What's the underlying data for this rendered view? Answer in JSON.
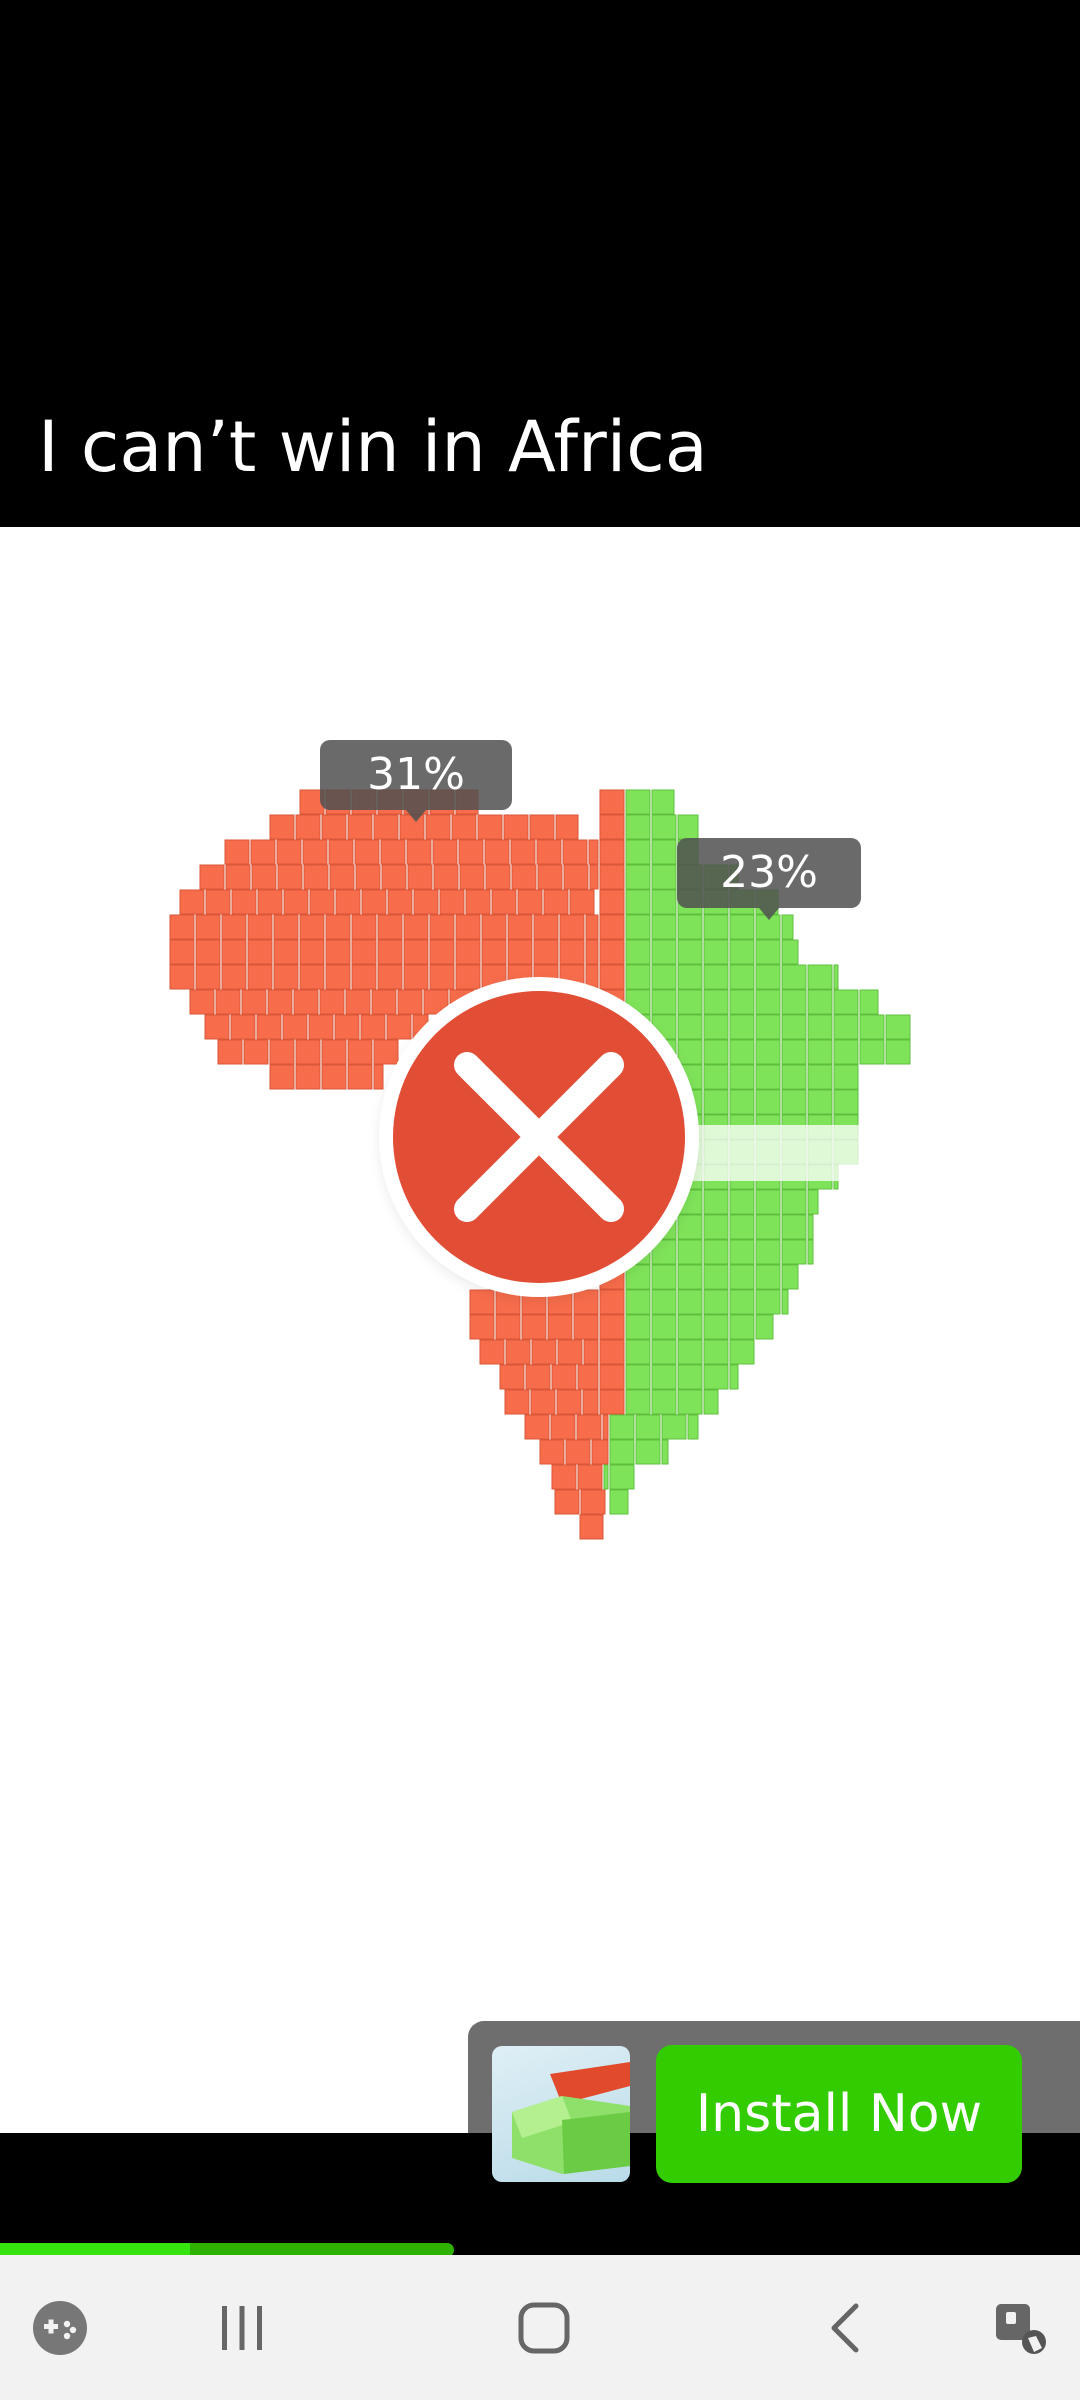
{
  "video": {
    "caption": "I can’t win in Africa"
  },
  "game": {
    "player_red": {
      "label": "31%",
      "color": "#f76d4b"
    },
    "player_green": {
      "label": "23%",
      "color": "#7fe35a"
    },
    "result_icon": "close-icon"
  },
  "ad": {
    "install_label": "Install Now",
    "thumbnail_icon": "puzzle-blocks-thumbnail"
  },
  "video_progress": 0.176,
  "navbar": {
    "items": [
      "game-launcher-icon",
      "recent-apps-icon",
      "home-icon",
      "back-icon",
      "accessibility-icon"
    ]
  }
}
